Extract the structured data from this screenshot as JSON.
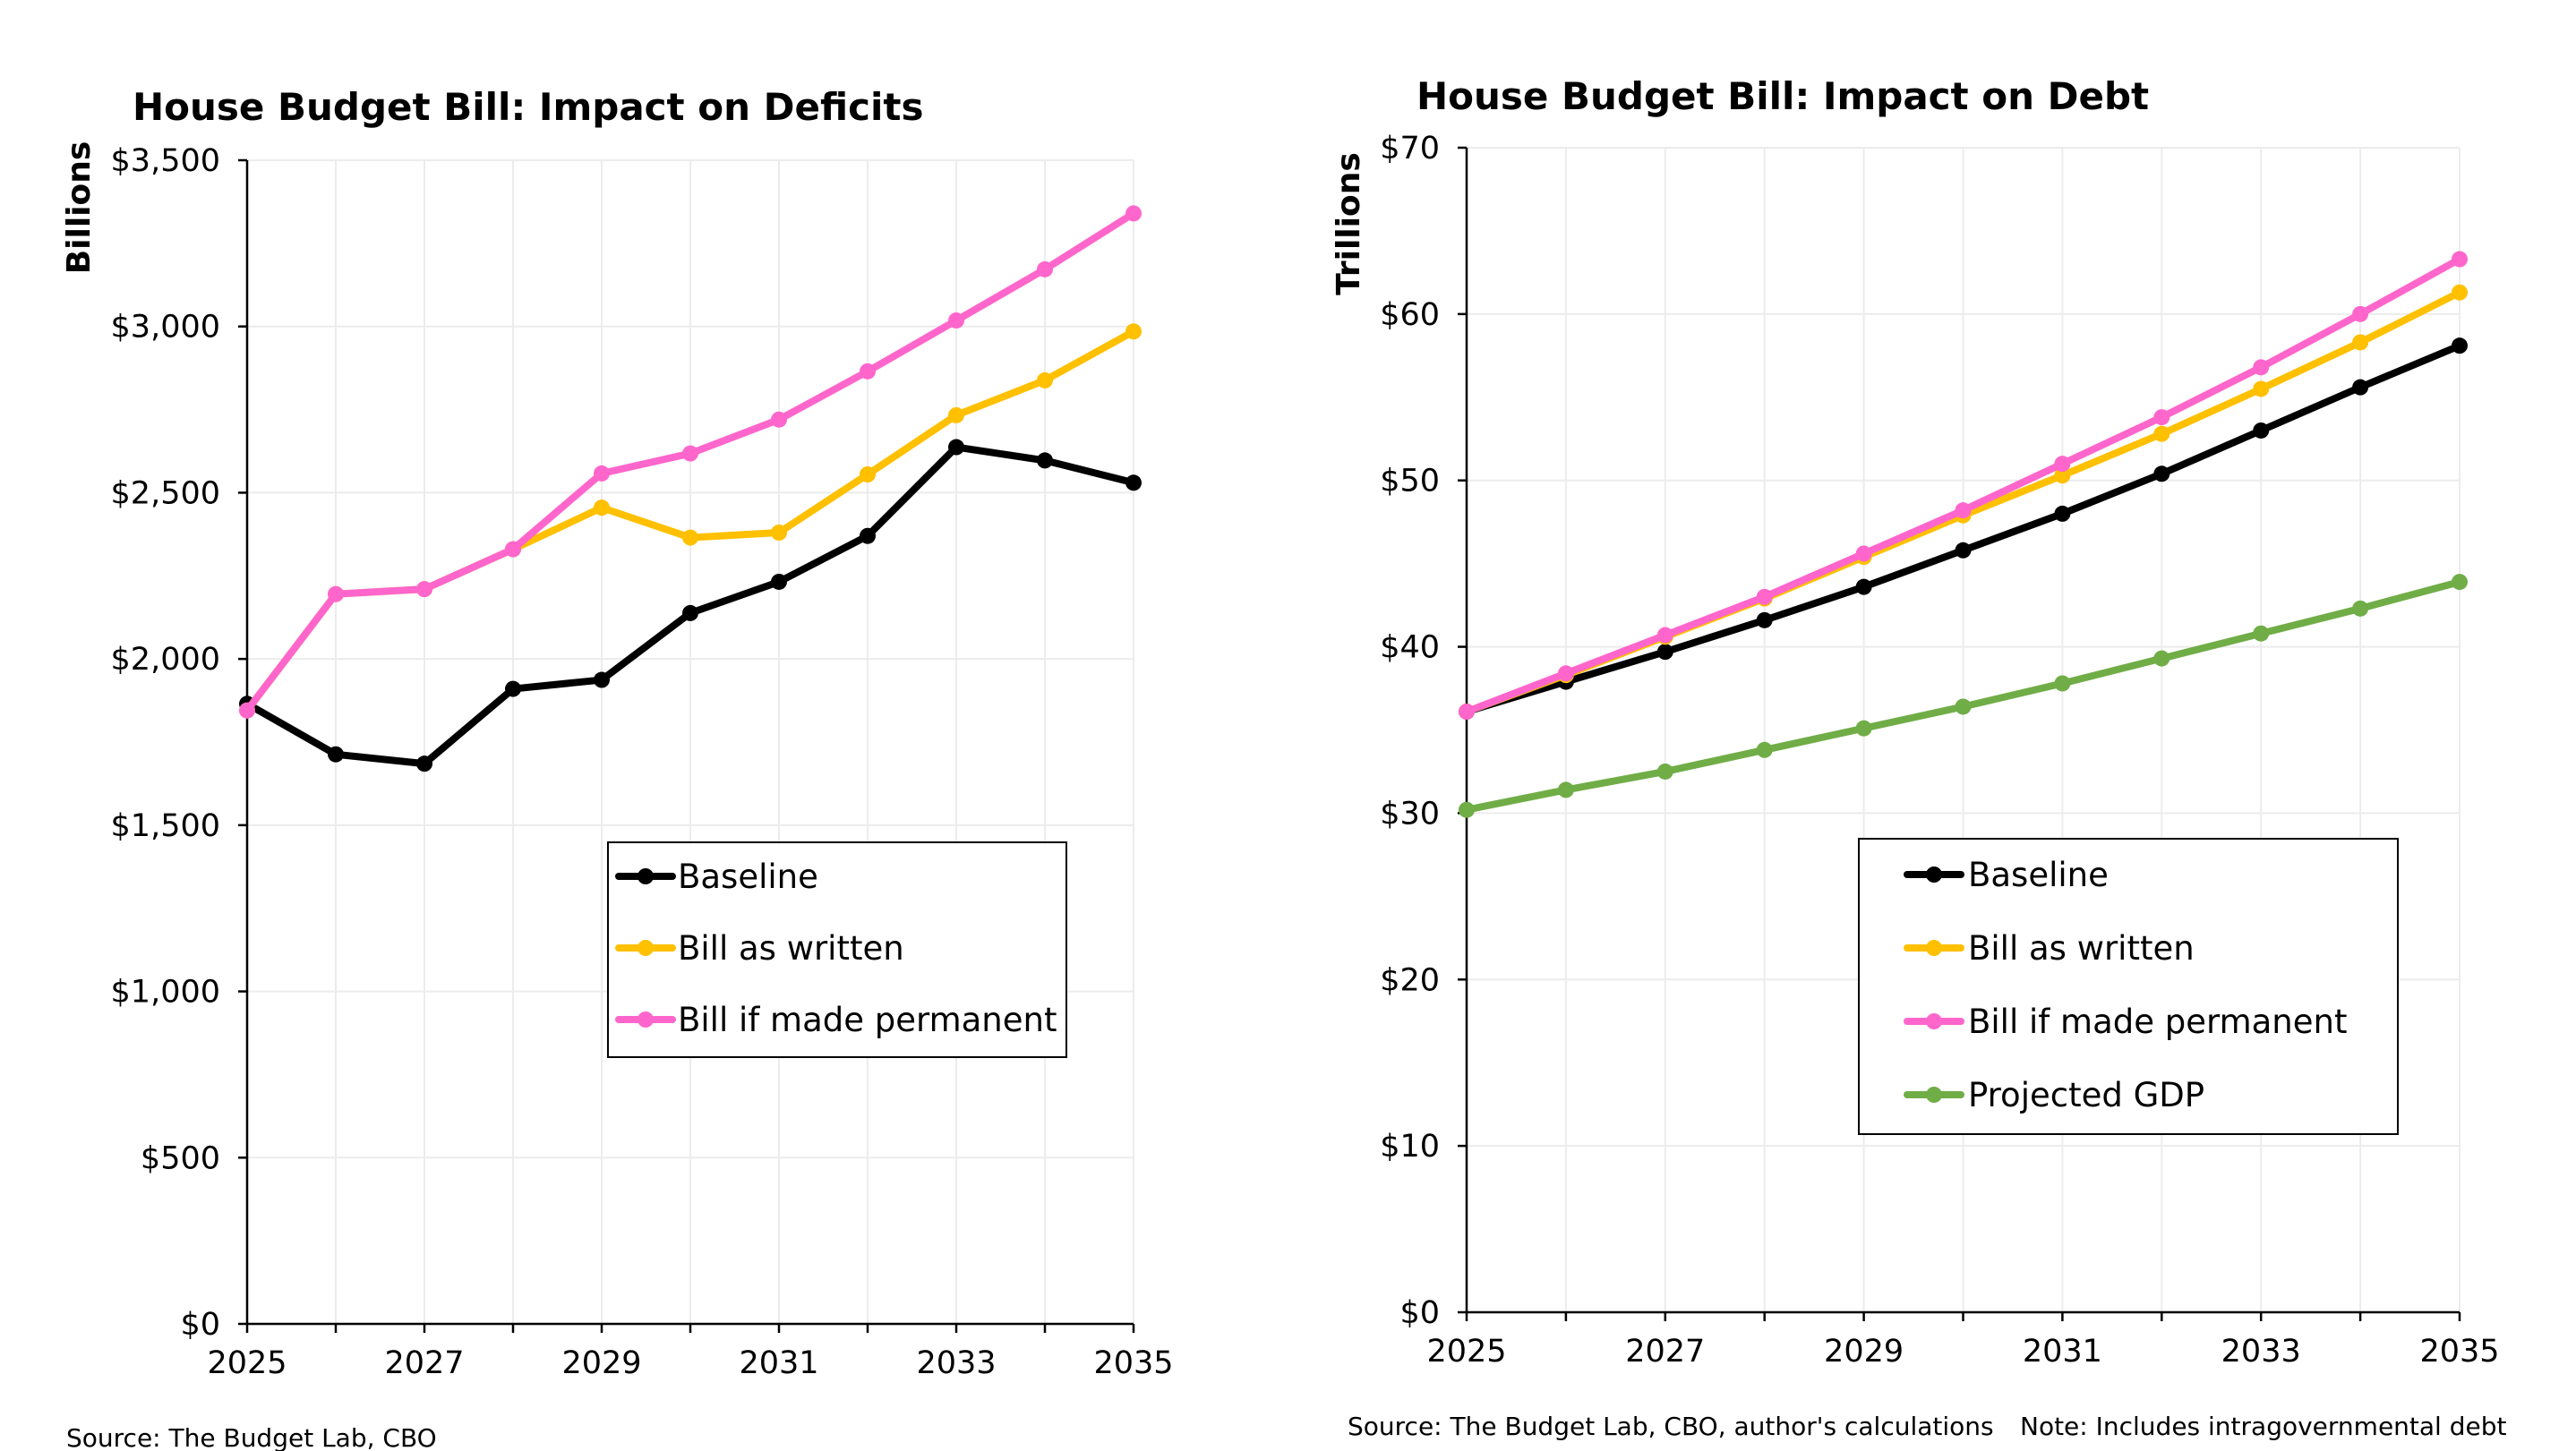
{
  "chart_data": [
    {
      "type": "line",
      "title": "House Budget Bill: Impact on Deficits",
      "xlabel": "",
      "ylabel": "Billions",
      "x": [
        2025,
        2026,
        2027,
        2028,
        2029,
        2030,
        2031,
        2032,
        2033,
        2034,
        2035
      ],
      "xticks": [
        "2025",
        "2027",
        "2029",
        "2031",
        "2033",
        "2035"
      ],
      "yticks": [
        "$0",
        "$500",
        "$1,000",
        "$1,500",
        "$2,000",
        "$2,500",
        "$3,000",
        "$3,500"
      ],
      "ylim": [
        0,
        3500
      ],
      "grid": true,
      "legend": "center-right",
      "series": [
        {
          "name": "Baseline",
          "color": "#000000",
          "values": [
            1865,
            1713,
            1685,
            1910,
            1937,
            2138,
            2232,
            2370,
            2637,
            2597,
            2530
          ]
        },
        {
          "name": "Bill as written",
          "color": "#FFC000",
          "values": [
            1845,
            2195,
            2210,
            2330,
            2455,
            2365,
            2380,
            2555,
            2733,
            2838,
            2985
          ]
        },
        {
          "name": "Bill if made permanent",
          "color": "#FF66CC",
          "values": [
            1845,
            2195,
            2210,
            2330,
            2558,
            2618,
            2720,
            2865,
            3018,
            3172,
            3340
          ]
        }
      ],
      "source": "Source: The Budget Lab, CBO"
    },
    {
      "type": "line",
      "title": "House Budget Bill: Impact on Debt",
      "xlabel": "",
      "ylabel": "Trillions",
      "x": [
        2025,
        2026,
        2027,
        2028,
        2029,
        2030,
        2031,
        2032,
        2033,
        2034,
        2035
      ],
      "xticks": [
        "2025",
        "2027",
        "2029",
        "2031",
        "2033",
        "2035"
      ],
      "yticks": [
        "$0",
        "$10",
        "$20",
        "$30",
        "$40",
        "$50",
        "$60",
        "$70"
      ],
      "ylim": [
        0,
        70
      ],
      "grid": true,
      "legend": "bottom-right",
      "series": [
        {
          "name": "Baseline",
          "color": "#000000",
          "values": [
            36.1,
            37.9,
            39.7,
            41.6,
            43.6,
            45.8,
            48.0,
            50.4,
            53.0,
            55.6,
            58.1
          ]
        },
        {
          "name": "Bill as written",
          "color": "#FFC000",
          "values": [
            36.1,
            38.3,
            40.6,
            42.9,
            45.4,
            47.9,
            50.3,
            52.8,
            55.5,
            58.3,
            61.3
          ]
        },
        {
          "name": "Bill if made permanent",
          "color": "#FF66CC",
          "values": [
            36.1,
            38.4,
            40.7,
            43.0,
            45.6,
            48.2,
            51.0,
            53.8,
            56.8,
            60.0,
            63.3
          ]
        },
        {
          "name": "Projected GDP",
          "color": "#70AD47",
          "values": [
            30.2,
            31.4,
            32.5,
            33.8,
            35.1,
            36.4,
            37.8,
            39.3,
            40.8,
            42.3,
            43.9
          ]
        }
      ],
      "source": "Source: The Budget Lab, CBO, author's calculations",
      "note": "Note: Includes intragovernmental debt"
    }
  ]
}
